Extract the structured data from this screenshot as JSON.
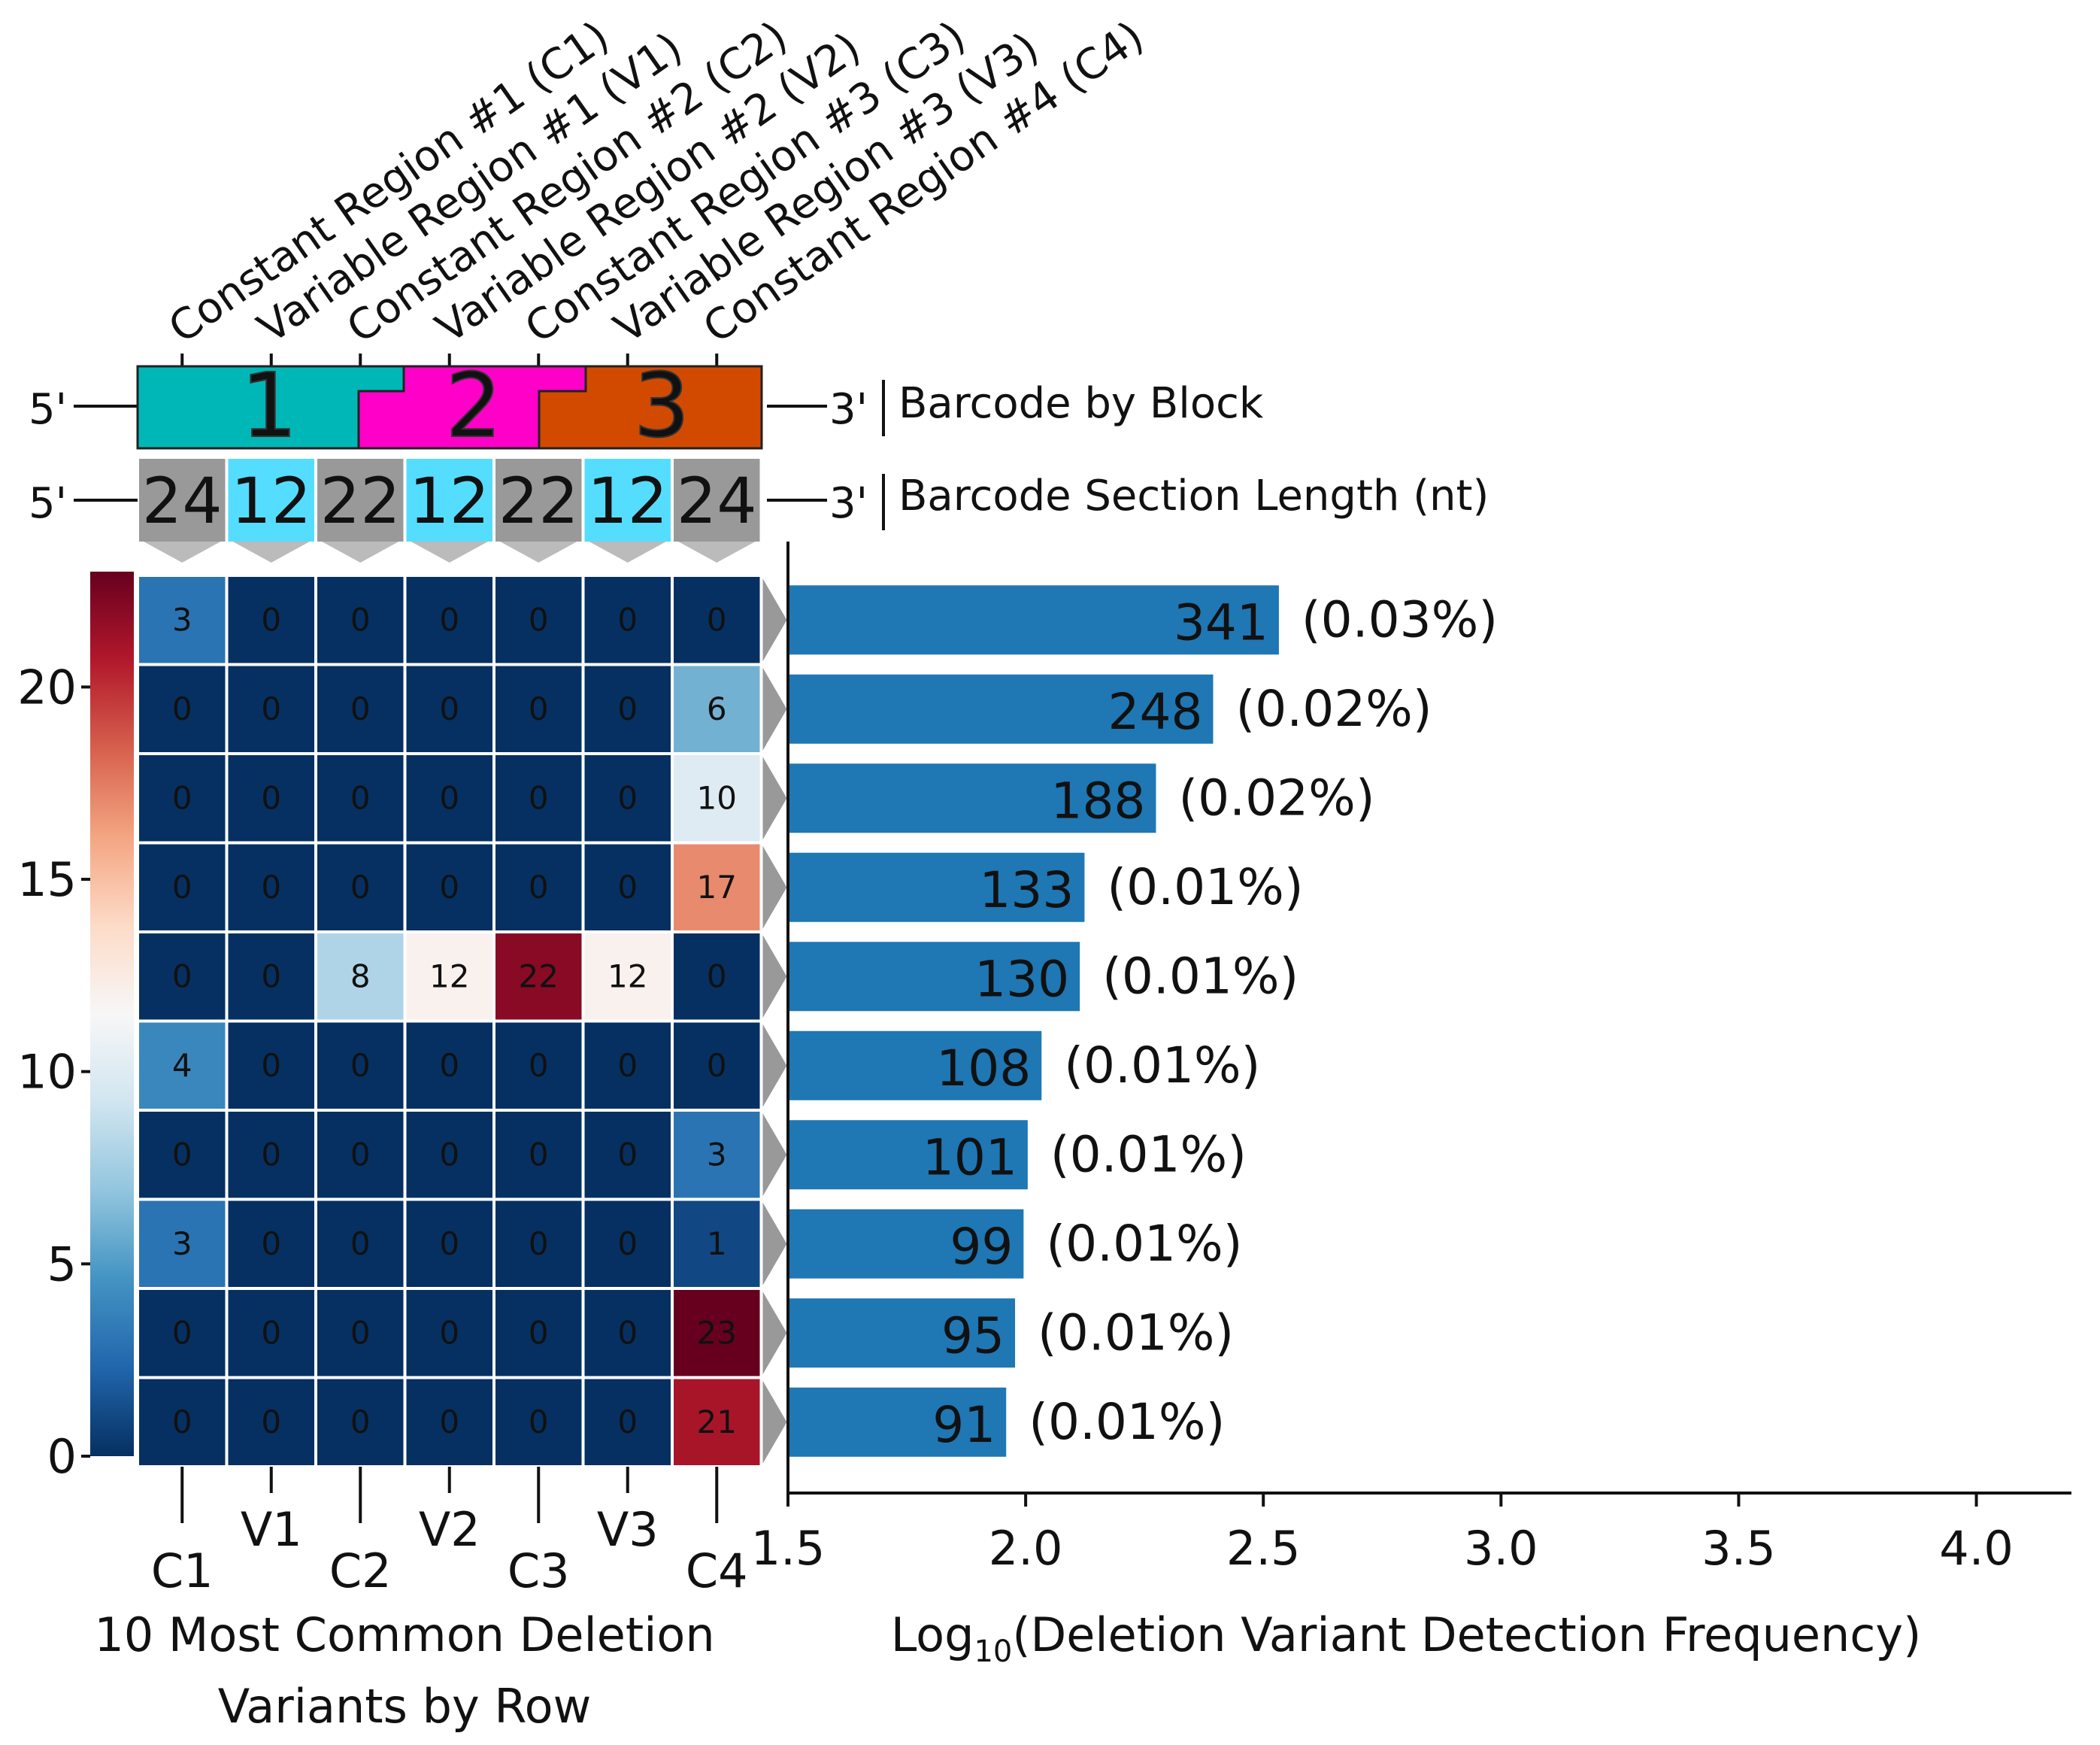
{
  "chart_data": [
    {
      "type": "heatmap",
      "xlabel": "10 Most Common Deletion Variants by Row",
      "x_categories": [
        "C1",
        "V1",
        "C2",
        "V2",
        "C3",
        "V3",
        "C4"
      ],
      "x_region_labels": [
        "Constant Region #1 (C1)",
        "Variable Region #1 (V1)",
        "Constant Region #2 (C2)",
        "Variable Region #2 (V2)",
        "Constant Region #3 (C3)",
        "Variable Region #3 (V3)",
        "Constant Region #4 (C4)"
      ],
      "rows": [
        [
          3,
          0,
          0,
          0,
          0,
          0,
          0
        ],
        [
          0,
          0,
          0,
          0,
          0,
          0,
          6
        ],
        [
          0,
          0,
          0,
          0,
          0,
          0,
          10
        ],
        [
          0,
          0,
          0,
          0,
          0,
          0,
          17
        ],
        [
          0,
          0,
          8,
          12,
          22,
          12,
          0
        ],
        [
          4,
          0,
          0,
          0,
          0,
          0,
          0
        ],
        [
          0,
          0,
          0,
          0,
          0,
          0,
          3
        ],
        [
          3,
          0,
          0,
          0,
          0,
          0,
          1
        ],
        [
          0,
          0,
          0,
          0,
          0,
          0,
          23
        ],
        [
          0,
          0,
          0,
          0,
          0,
          0,
          21
        ]
      ],
      "colorbar": {
        "min": 0,
        "max": 23,
        "ticks": [
          "0",
          "5",
          "10",
          "15",
          "20"
        ],
        "colormap": "RdBu_r"
      }
    },
    {
      "type": "barh",
      "xlabel_main": "Log",
      "xlabel_sub": "10",
      "xlabel_rest": "(Deletion Variant Detection Frequency)",
      "xlim": [
        1.5,
        4.2
      ],
      "xticks": [
        "1.5",
        "2.0",
        "2.5",
        "3.0",
        "3.5",
        "4.0"
      ],
      "counts": [
        "341",
        "248",
        "188",
        "133",
        "130",
        "108",
        "101",
        "99",
        "95",
        "91"
      ],
      "percents": [
        "(0.03%)",
        "(0.02%)",
        "(0.02%)",
        "(0.01%)",
        "(0.01%)",
        "(0.01%)",
        "(0.01%)",
        "(0.01%)",
        "(0.01%)",
        "(0.01%)"
      ],
      "bar_color": "#1f77b4"
    }
  ],
  "barcode": {
    "five_prime": "5'",
    "three_prime": "3'",
    "block_title": "Barcode by Block",
    "length_title": "Barcode Section Length (nt)",
    "blocks": [
      "1",
      "2",
      "3"
    ],
    "block_colors": [
      "#00b7b7",
      "#ff00c8",
      "#d24a00"
    ],
    "lengths": [
      "24",
      "12",
      "22",
      "12",
      "22",
      "12",
      "24"
    ],
    "length_colors": [
      "#999999",
      "#55ddff",
      "#999999",
      "#55ddff",
      "#999999",
      "#55ddff",
      "#999999"
    ]
  }
}
